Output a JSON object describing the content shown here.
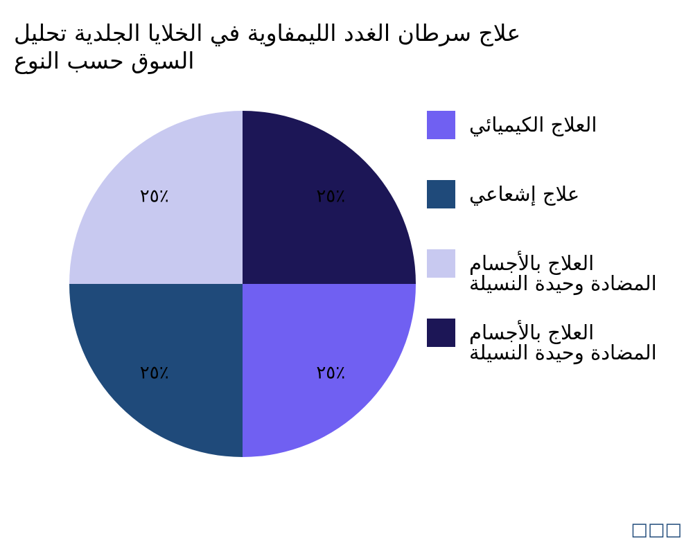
{
  "chart_data": {
    "type": "pie",
    "title_lines": [
      "علاج سرطان الغدد الليمفاوية في الخلايا الجلدية تحليل",
      "السوق حسب النوع"
    ],
    "categories": [
      "العلاج الكيميائي",
      "علاج إشعاعي",
      "العلاج بالأجسام\nالمضادة وحيدة النسيلة",
      "العلاج بالأجسام\nالمضادة وحيدة النسيلة"
    ],
    "values": [
      25,
      25,
      25,
      25
    ],
    "data_labels": [
      "٢٥٪",
      "٢٥٪",
      "٢٥٪",
      "٢٥٪"
    ],
    "colors": [
      "#7060F2",
      "#1F4A7A",
      "#C8C9F0",
      "#1C1656"
    ],
    "legend_position": "right"
  },
  "watermark": "□□□"
}
